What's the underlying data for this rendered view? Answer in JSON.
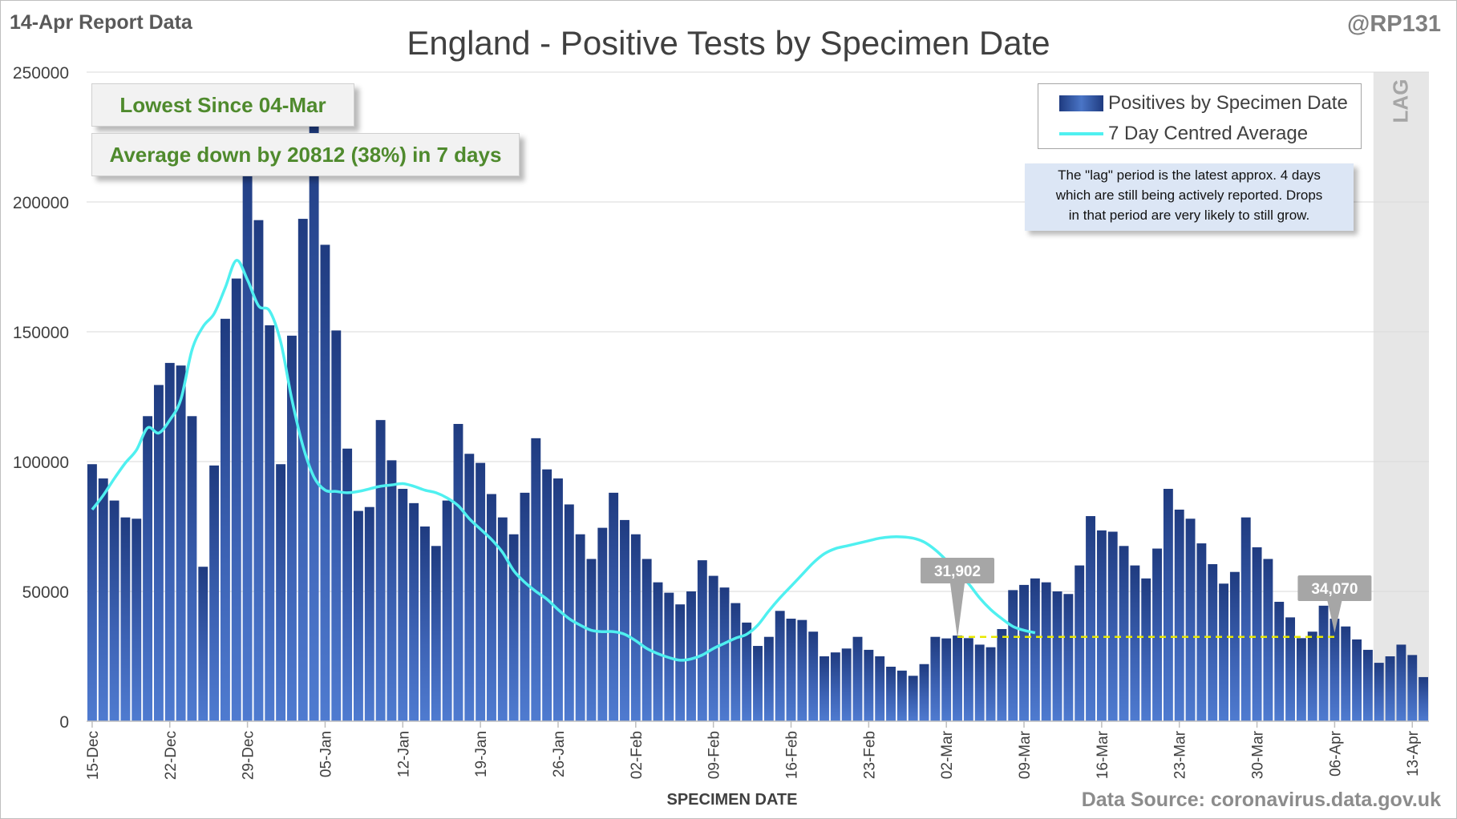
{
  "header": {
    "report_label": "14-Apr Report Data",
    "handle": "@RP131",
    "title": "England - Positive Tests by Specimen Date",
    "source": "Data Source: coronavirus.data.gov.uk"
  },
  "callouts": {
    "lowest": "Lowest Since 04-Mar",
    "average": "Average down by 20812 (38%) in 7 days"
  },
  "legend": {
    "bars": "Positives by Specimen Date",
    "line": "7 Day Centred Average"
  },
  "note": {
    "line1": "The \"lag\" period is the latest approx. 4 days",
    "line2": "which are still being actively reported. Drops",
    "line3": "in that period are very likely to still grow."
  },
  "colors": {
    "bar_dark": "#1f3b80",
    "bar_light": "#4a75c6",
    "average_line": "#4ff0f0",
    "ref_line": "#e8e800",
    "lag_band": "#e6e6e6"
  },
  "chart_data": {
    "type": "bar",
    "title": "England - Positive Tests by Specimen Date",
    "xlabel": "SPECIMEN DATE",
    "ylabel": "",
    "ylim": [
      0,
      250000
    ],
    "yticks": [
      "0",
      "50000",
      "100000",
      "150000",
      "200000",
      "250000"
    ],
    "grid": true,
    "legend_position": "top-right",
    "x_tick_labels": [
      "15-Dec",
      "22-Dec",
      "29-Dec",
      "05-Jan",
      "12-Jan",
      "19-Jan",
      "26-Jan",
      "02-Feb",
      "09-Feb",
      "16-Feb",
      "23-Feb",
      "02-Mar",
      "09-Mar",
      "16-Mar",
      "23-Mar",
      "30-Mar",
      "06-Apr",
      "13-Apr"
    ],
    "lag_label": "LAG",
    "lag_start": "10-Apr",
    "x_start": "15-Dec",
    "series": [
      {
        "name": "Positives by Specimen Date",
        "type": "bar",
        "values": [
          99000,
          93500,
          85000,
          78500,
          78000,
          117500,
          129500,
          138000,
          137000,
          117500,
          59500,
          98500,
          155000,
          170500,
          226000,
          193000,
          152500,
          99000,
          148500,
          193500,
          234000,
          183500,
          150500,
          105000,
          81000,
          82500,
          116000,
          100500,
          89500,
          84000,
          75000,
          67500,
          85000,
          114500,
          103000,
          99500,
          87500,
          78500,
          72000,
          88000,
          109000,
          97000,
          93500,
          83500,
          72000,
          62500,
          74500,
          88000,
          77500,
          72000,
          62500,
          53500,
          49500,
          45000,
          50000,
          62000,
          56000,
          51500,
          45500,
          38000,
          29000,
          32500,
          42500,
          39500,
          39000,
          34500,
          25000,
          26500,
          28000,
          32500,
          27500,
          25000,
          21000,
          19500,
          17500,
          22000,
          32500,
          31900,
          33000,
          32000,
          29500,
          28500,
          35500,
          50500,
          52500,
          55000,
          53500,
          50000,
          49000,
          60000,
          79000,
          73500,
          73000,
          67500,
          60000,
          55000,
          66500,
          89500,
          81500,
          78000,
          68500,
          60500,
          53000,
          57500,
          78500,
          67000,
          62500,
          46000,
          40000,
          32000,
          34500,
          44500,
          39500,
          36500,
          31500,
          27500,
          22500,
          25000,
          29500,
          25500,
          17000
        ]
      },
      {
        "name": "7 Day Centred Average",
        "type": "line",
        "start_index": 0,
        "values": [
          81500,
          87000,
          93500,
          99500,
          104500,
          113000,
          111000,
          116000,
          124000,
          143000,
          152000,
          157000,
          167000,
          177500,
          170000,
          160000,
          158000,
          146000,
          124000,
          106000,
          94000,
          89000,
          88500,
          88000,
          88500,
          89500,
          90500,
          91000,
          91500,
          90500,
          89000,
          88000,
          86000,
          83000,
          78000,
          74000,
          70000,
          65000,
          58000,
          53500,
          50000,
          47000,
          43000,
          39500,
          37000,
          35000,
          34500,
          34500,
          33500,
          31000,
          28000,
          26000,
          24500,
          23500,
          24000,
          25500,
          28000,
          30000,
          32000,
          33500,
          37000,
          42500,
          47500,
          52000,
          56500,
          61000,
          64500,
          66500,
          67500,
          68500,
          69500,
          70500,
          71000,
          71000,
          70500,
          69000,
          66000,
          62000,
          57500,
          53000,
          47500,
          43000,
          39500,
          36500,
          35000,
          34070
        ]
      }
    ],
    "annotations": [
      {
        "label": "31,902",
        "date": "03-Mar",
        "value": 31902
      },
      {
        "label": "34,070",
        "date": "06-Apr",
        "value": 34070
      }
    ],
    "reference_line": {
      "value": 32500,
      "from": "03-Mar",
      "to": "06-Apr",
      "style": "dashed"
    }
  }
}
